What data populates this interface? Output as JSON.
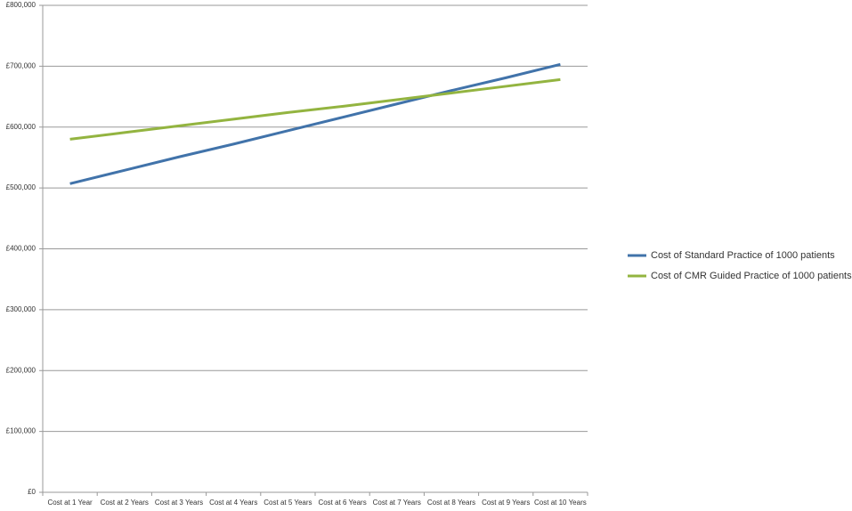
{
  "chart_data": {
    "type": "line",
    "categories": [
      "Cost at 1 Year",
      "Cost at 2 Years",
      "Cost at 3 Years",
      "Cost at 4 Years",
      "Cost at 5 Years",
      "Cost at 6 Years",
      "Cost at 7 Years",
      "Cost at 8 Years",
      "Cost at 9 Years",
      "Cost at 10 Years"
    ],
    "series": [
      {
        "name": "Cost of Standard Practice of 1000 patients",
        "color": "#4173aa",
        "values": [
          507000,
          529000,
          551000,
          572000,
          594000,
          616000,
          638000,
          660000,
          681000,
          703000
        ]
      },
      {
        "name": "Cost of CMR Guided Practice of 1000 patients",
        "color": "#93b440",
        "values": [
          580000,
          591000,
          602000,
          613000,
          624000,
          634000,
          645000,
          656000,
          667000,
          678000
        ]
      }
    ],
    "ylim": [
      0,
      800000
    ],
    "yticks": [
      {
        "value": 0,
        "label": "£0"
      },
      {
        "value": 100000,
        "label": "£100,000"
      },
      {
        "value": 200000,
        "label": "£200,000"
      },
      {
        "value": 300000,
        "label": "£300,000"
      },
      {
        "value": 400000,
        "label": "£400,000"
      },
      {
        "value": 500000,
        "label": "£500,000"
      },
      {
        "value": 600000,
        "label": "£600,000"
      },
      {
        "value": 700000,
        "label": "£700,000"
      },
      {
        "value": 800000,
        "label": "£800,000"
      }
    ],
    "grid": true,
    "legend": "right"
  }
}
